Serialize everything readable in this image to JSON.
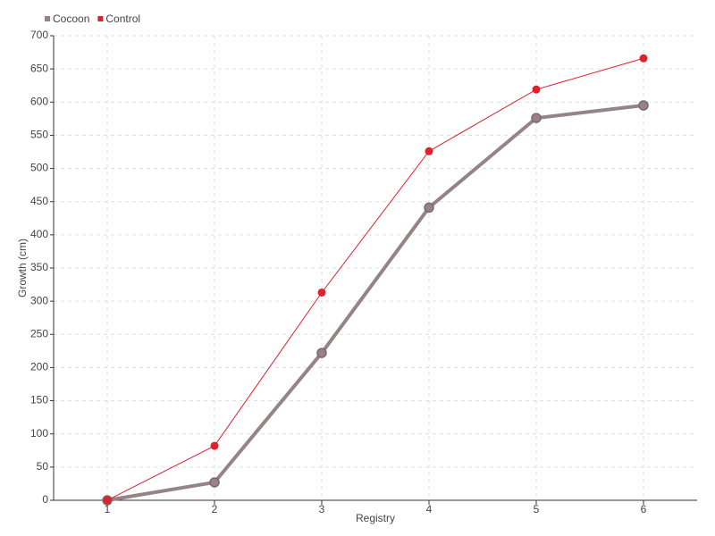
{
  "chart_data": {
    "type": "line",
    "categories": [
      "1",
      "2",
      "3",
      "4",
      "5",
      "6"
    ],
    "series": [
      {
        "name": "Cocoon",
        "color": "#9e7f86",
        "values": [
          0,
          27,
          222,
          441,
          576,
          595
        ]
      },
      {
        "name": "Control",
        "color": "#e0202a",
        "values": [
          0,
          82,
          313,
          526,
          619,
          666
        ]
      }
    ],
    "x_label": "Registry",
    "y_label": "Growth (cm)",
    "ylim": [
      0,
      700
    ],
    "yticks": [
      0,
      50,
      100,
      150,
      200,
      250,
      300,
      350,
      400,
      450,
      500,
      550,
      600,
      650,
      700
    ],
    "grid": true,
    "legend": "top-left"
  }
}
